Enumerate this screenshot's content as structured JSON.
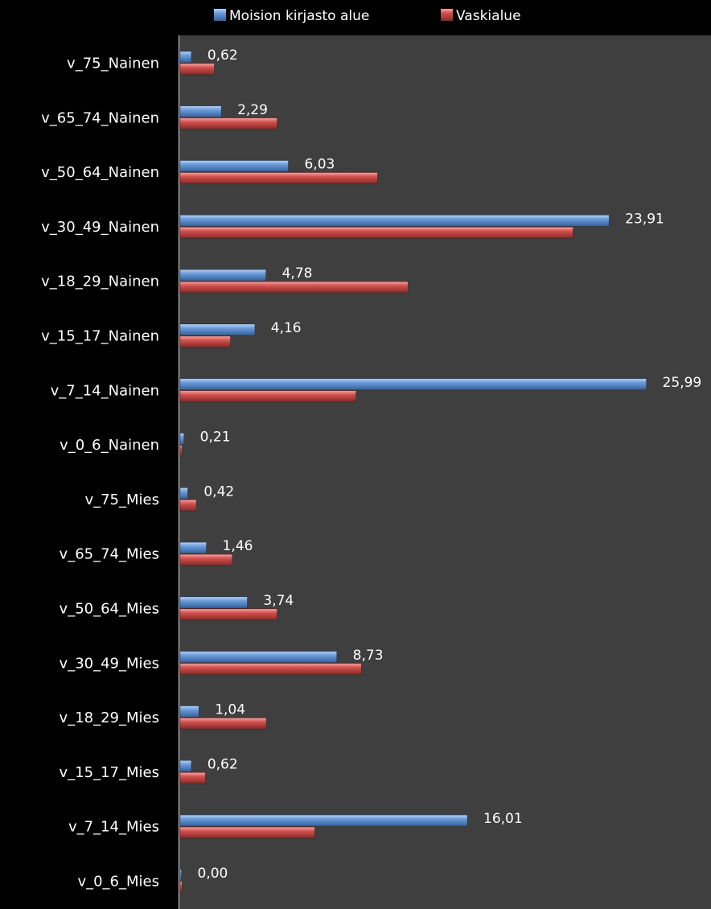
{
  "chart_data": {
    "type": "bar",
    "orientation": "horizontal",
    "categories": [
      "v_75_Nainen",
      "v_65_74_Nainen",
      "v_50_64_Nainen",
      "v_30_49_Nainen",
      "v_18_29_Nainen",
      "v_15_17_Nainen",
      "v_7_14_Nainen",
      "v_0_6_Nainen",
      "v_75_Mies",
      "v_65_74_Mies",
      "v_50_64_Mies",
      "v_30_49_Mies",
      "v_18_29_Mies",
      "v_15_17_Mies",
      "v_7_14_Mies",
      "v_0_6_Mies"
    ],
    "series": [
      {
        "name": "Moision kirjasto alue",
        "color": "#4f81bd",
        "values": [
          0.62,
          2.29,
          6.03,
          23.91,
          4.78,
          4.16,
          25.99,
          0.21,
          0.42,
          1.46,
          3.74,
          8.73,
          1.04,
          0.62,
          16.01,
          0.0
        ],
        "labels": [
          "0,62",
          "2,29",
          "6,03",
          "23,91",
          "4,78",
          "4,16",
          "25,99",
          "0,21",
          "0,42",
          "1,46",
          "3,74",
          "8,73",
          "1,04",
          "0,62",
          "16,01",
          "0,00"
        ]
      },
      {
        "name": "Vaskialue",
        "color": "#c0504d",
        "values": [
          1.9,
          5.4,
          11.0,
          21.9,
          12.7,
          2.8,
          9.8,
          0.1,
          0.9,
          2.9,
          5.4,
          10.1,
          4.8,
          1.4,
          7.5,
          0.1
        ]
      }
    ],
    "xlim": [
      0,
      28
    ],
    "grid": false,
    "legend": "top"
  }
}
